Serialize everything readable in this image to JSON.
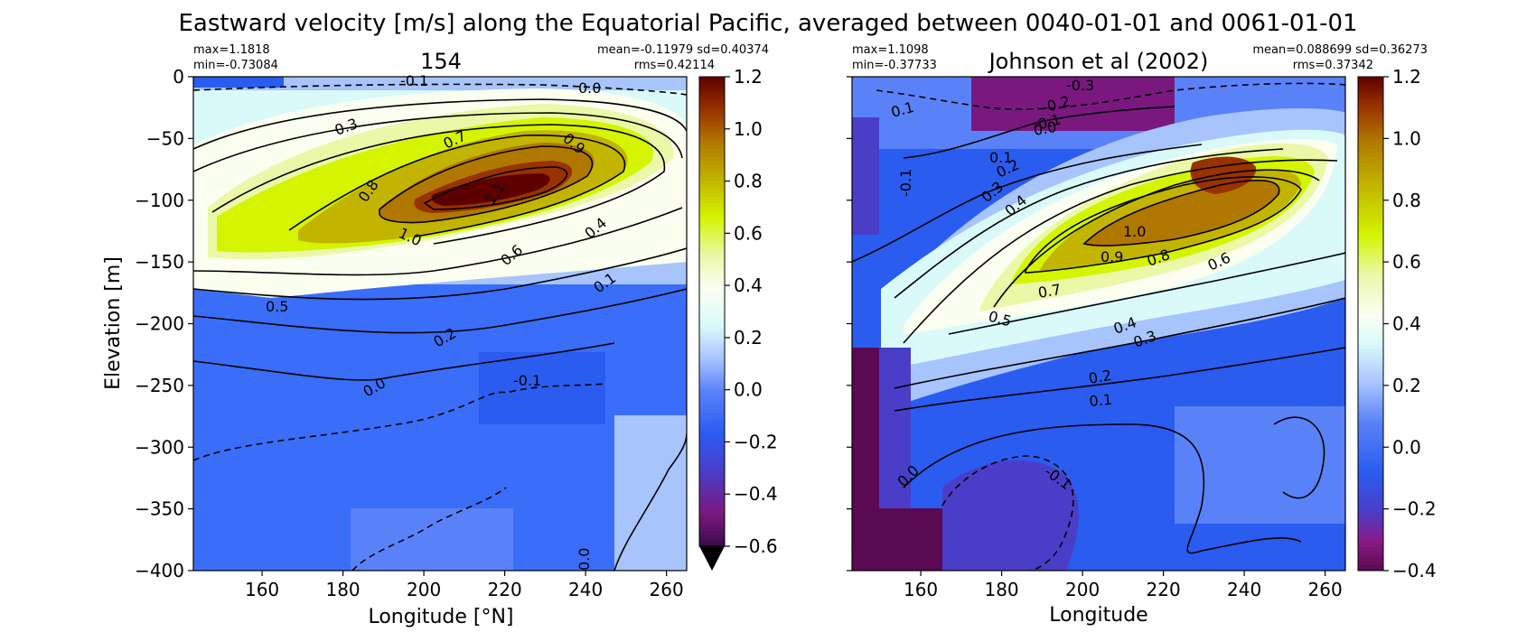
{
  "figure_title": "Eastward velocity [m/s] along the Equatorial Pacific, averaged between 0040-01-01 and 0061-01-01",
  "chart_data": [
    {
      "type": "heatmap",
      "title": "154",
      "xlabel": "Longitude [°N]",
      "ylabel": "Elevation [m]",
      "xlim": [
        143,
        265
      ],
      "ylim": [
        -400,
        0
      ],
      "xticks": [
        "160",
        "180",
        "200",
        "220",
        "240",
        "260"
      ],
      "yticks": [
        "0",
        "−50",
        "−100",
        "−150",
        "−200",
        "−250",
        "−300",
        "−350",
        "−400"
      ],
      "stats": {
        "max": "max=1.1818",
        "min": "min=-0.73084",
        "mean_sd": "mean=-0.11979 sd=0.40374",
        "rms": "rms=0.42114"
      },
      "colorbar": {
        "ticks": [
          "1.2",
          "1.0",
          "0.8",
          "0.6",
          "0.4",
          "0.2",
          "0.0",
          "−0.2",
          "−0.4",
          "−0.6"
        ],
        "range": [
          -0.6,
          1.2
        ],
        "extend_min": true
      },
      "contour_labels": [
        "-0.1",
        "0.0",
        "0.3",
        "0.7",
        "0.9",
        "0.8",
        "1.1",
        "1.0",
        "0.4",
        "0.6",
        "0.1",
        "0.5",
        "0.2",
        "0.0",
        "-0.1",
        "0.0"
      ]
    },
    {
      "type": "heatmap",
      "title": "Johnson et al (2002)",
      "xlabel": "Longitude",
      "ylabel": "",
      "xlim": [
        143,
        265
      ],
      "ylim": [
        -400,
        0
      ],
      "xticks": [
        "160",
        "180",
        "200",
        "220",
        "240",
        "260"
      ],
      "stats": {
        "max": "max=1.1098",
        "min": "min=-0.37733",
        "mean_sd": "mean=0.088699 sd=0.36273",
        "rms": "rms=0.37342"
      },
      "colorbar": {
        "ticks": [
          "1.2",
          "1.0",
          "0.8",
          "0.6",
          "0.4",
          "0.2",
          "0.0",
          "−0.2",
          "−0.4"
        ],
        "range": [
          -0.4,
          1.2
        ],
        "extend_min": false
      },
      "contour_labels": [
        "-0.3",
        "-0.2",
        "-0.1",
        "0.0",
        "0.1",
        "0.1",
        "-0.1",
        "0.2",
        "0.3",
        "0.4",
        "1.0",
        "0.9",
        "0.8",
        "0.6",
        "0.7",
        "0.5",
        "0.4",
        "0.3",
        "0.2",
        "0.1",
        "0.0",
        "-0.1"
      ]
    }
  ]
}
